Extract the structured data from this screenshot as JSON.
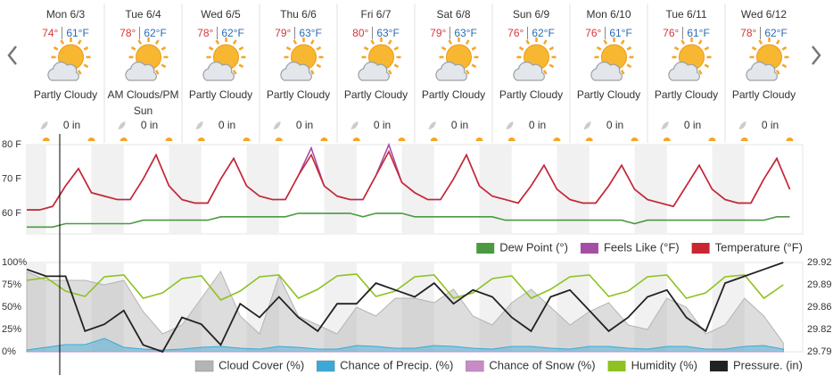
{
  "days": [
    {
      "day": "Mon 6/3",
      "high": "74°",
      "low": "61°F",
      "condition": "Partly Cloudy",
      "precip": "0 in"
    },
    {
      "day": "Tue 6/4",
      "high": "78°",
      "low": "62°F",
      "condition": "AM Clouds/PM Sun",
      "precip": "0 in"
    },
    {
      "day": "Wed 6/5",
      "high": "78°",
      "low": "62°F",
      "condition": "Partly Cloudy",
      "precip": "0 in"
    },
    {
      "day": "Thu 6/6",
      "high": "79°",
      "low": "63°F",
      "condition": "Partly Cloudy",
      "precip": "0 in"
    },
    {
      "day": "Fri 6/7",
      "high": "80°",
      "low": "63°F",
      "condition": "Partly Cloudy",
      "precip": "0 in"
    },
    {
      "day": "Sat 6/8",
      "high": "79°",
      "low": "63°F",
      "condition": "Partly Cloudy",
      "precip": "0 in"
    },
    {
      "day": "Sun 6/9",
      "high": "76°",
      "low": "62°F",
      "condition": "Partly Cloudy",
      "precip": "0 in"
    },
    {
      "day": "Mon 6/10",
      "high": "76°",
      "low": "61°F",
      "condition": "Partly Cloudy",
      "precip": "0 in"
    },
    {
      "day": "Tue 6/11",
      "high": "76°",
      "low": "61°F",
      "condition": "Partly Cloudy",
      "precip": "0 in"
    },
    {
      "day": "Wed 6/12",
      "high": "78°",
      "low": "62°F",
      "condition": "Partly Cloudy",
      "precip": "0 in"
    }
  ],
  "chart_data": [
    {
      "type": "line",
      "xlim": [
        0,
        240
      ],
      "ylim": [
        54,
        80
      ],
      "yticks": [
        {
          "value": 60,
          "label": "60 F"
        },
        {
          "value": 70,
          "label": "70 F"
        },
        {
          "value": 80,
          "label": "80 F"
        }
      ],
      "grid": false,
      "legend": "bottom-right",
      "x": [
        0,
        4,
        8,
        12,
        16,
        20,
        24,
        28,
        32,
        36,
        40,
        44,
        48,
        52,
        56,
        60,
        64,
        68,
        72,
        76,
        80,
        84,
        88,
        92,
        96,
        100,
        104,
        108,
        112,
        116,
        120,
        124,
        128,
        132,
        136,
        140,
        144,
        148,
        152,
        156,
        160,
        164,
        168,
        172,
        176,
        180,
        184,
        188,
        192,
        196,
        200,
        204,
        208,
        212,
        216,
        220,
        224,
        228,
        232,
        236
      ],
      "series": [
        {
          "name": "Dew Point (°)",
          "color": "#4b9a42",
          "style": "line",
          "values": [
            56,
            56,
            56,
            57,
            57,
            57,
            57,
            57,
            57,
            58,
            58,
            58,
            58,
            58,
            58,
            59,
            59,
            59,
            59,
            59,
            59,
            60,
            60,
            60,
            60,
            60,
            59,
            60,
            60,
            60,
            59,
            59,
            59,
            59,
            59,
            59,
            59,
            58,
            58,
            58,
            58,
            58,
            58,
            58,
            58,
            58,
            58,
            57,
            58,
            58,
            58,
            58,
            58,
            58,
            58,
            58,
            58,
            58,
            59,
            59
          ]
        },
        {
          "name": "Feels Like (°F)",
          "color": "#a54ea5",
          "style": "line",
          "values": [
            61,
            61,
            62,
            68,
            73,
            66,
            65,
            64,
            64,
            70,
            77,
            68,
            64,
            63,
            63,
            70,
            76,
            68,
            65,
            64,
            64,
            71,
            79,
            68,
            65,
            64,
            64,
            71,
            80,
            69,
            66,
            64,
            64,
            70,
            77,
            68,
            65,
            64,
            63,
            68,
            74,
            67,
            64,
            63,
            63,
            68,
            74,
            67,
            64,
            63,
            62,
            68,
            74,
            67,
            64,
            63,
            63,
            70,
            76,
            67
          ]
        },
        {
          "name": "Temperature (°F)",
          "color": "#c82730",
          "style": "line",
          "values": [
            61,
            61,
            62,
            68,
            73,
            66,
            65,
            64,
            64,
            70,
            77,
            68,
            64,
            63,
            63,
            70,
            76,
            68,
            65,
            64,
            64,
            71,
            77,
            68,
            65,
            64,
            64,
            71,
            78,
            69,
            66,
            64,
            64,
            70,
            77,
            68,
            65,
            64,
            63,
            68,
            74,
            67,
            64,
            63,
            63,
            68,
            74,
            67,
            64,
            63,
            62,
            68,
            74,
            67,
            64,
            63,
            63,
            70,
            76,
            67
          ]
        }
      ]
    },
    {
      "type": "line",
      "xlim": [
        0,
        240
      ],
      "ylim": [
        0,
        100
      ],
      "y2lim": [
        29.79,
        29.92
      ],
      "yticks": [
        {
          "value": 0,
          "label": "0%"
        },
        {
          "value": 25,
          "label": "25%"
        },
        {
          "value": 50,
          "label": "50%"
        },
        {
          "value": 75,
          "label": "75%"
        },
        {
          "value": 100,
          "label": "100%"
        }
      ],
      "y2ticks": [
        29.79,
        {
          "value": 29.8225,
          "label": "29.82"
        },
        {
          "value": 29.855,
          "label": "29.86"
        },
        {
          "value": 29.8875,
          "label": "29.89"
        },
        29.92
      ],
      "grid": false,
      "legend": "bottom-right",
      "x": [
        0,
        6,
        12,
        18,
        24,
        30,
        36,
        42,
        48,
        54,
        60,
        66,
        72,
        78,
        84,
        90,
        96,
        102,
        108,
        114,
        120,
        126,
        132,
        138,
        144,
        150,
        156,
        162,
        168,
        174,
        180,
        186,
        192,
        198,
        204,
        210,
        216,
        222,
        228,
        234
      ],
      "series": [
        {
          "name": "Cloud Cover (%)",
          "color": "#b4b4b4",
          "style": "area",
          "values": [
            90,
            80,
            80,
            80,
            75,
            80,
            45,
            20,
            30,
            60,
            90,
            40,
            20,
            85,
            40,
            30,
            20,
            50,
            40,
            60,
            60,
            55,
            70,
            40,
            30,
            55,
            70,
            50,
            30,
            45,
            55,
            30,
            25,
            60,
            50,
            20,
            30,
            60,
            40,
            10
          ]
        },
        {
          "name": "Chance of Precip. (%)",
          "color": "#3aa9d8",
          "style": "area",
          "values": [
            2,
            5,
            8,
            8,
            15,
            5,
            3,
            2,
            3,
            5,
            6,
            4,
            3,
            6,
            5,
            3,
            3,
            7,
            6,
            4,
            4,
            7,
            6,
            4,
            3,
            6,
            6,
            4,
            3,
            6,
            6,
            4,
            3,
            6,
            6,
            3,
            3,
            6,
            7,
            3
          ]
        },
        {
          "name": "Chance of Snow (%)",
          "color": "#c88bc8",
          "style": "area",
          "values": [
            0,
            0,
            0,
            0,
            0,
            0,
            0,
            0,
            0,
            0,
            0,
            0,
            0,
            0,
            0,
            0,
            0,
            0,
            0,
            0,
            0,
            0,
            0,
            0,
            0,
            0,
            0,
            0,
            0,
            0,
            0,
            0,
            0,
            0,
            0,
            0,
            0,
            0,
            0,
            0
          ]
        },
        {
          "name": "Humidity (%)",
          "color": "#8dc21f",
          "style": "line",
          "values": [
            80,
            83,
            68,
            62,
            84,
            86,
            60,
            66,
            82,
            85,
            58,
            68,
            84,
            86,
            60,
            70,
            85,
            87,
            62,
            68,
            84,
            86,
            60,
            66,
            82,
            85,
            60,
            70,
            84,
            86,
            62,
            68,
            84,
            86,
            60,
            66,
            84,
            86,
            60,
            75
          ]
        },
        {
          "name": "Pressure. (in)",
          "color": "#222222",
          "style": "line",
          "axis": "y2",
          "values": [
            29.91,
            29.9,
            29.9,
            29.82,
            29.83,
            29.85,
            29.8,
            29.79,
            29.84,
            29.83,
            29.8,
            29.86,
            29.84,
            29.87,
            29.84,
            29.82,
            29.86,
            29.86,
            29.89,
            29.88,
            29.87,
            29.89,
            29.86,
            29.88,
            29.87,
            29.84,
            29.82,
            29.87,
            29.88,
            29.85,
            29.82,
            29.84,
            29.87,
            29.88,
            29.84,
            29.82,
            29.89,
            29.9,
            29.91,
            29.92
          ]
        }
      ]
    }
  ]
}
